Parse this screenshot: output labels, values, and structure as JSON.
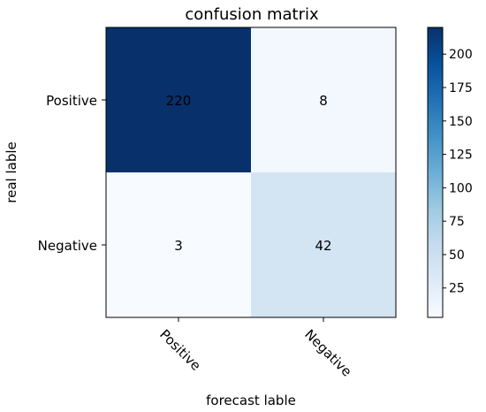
{
  "chart_data": {
    "type": "heatmap",
    "title": "confusion matrix",
    "xlabel": "forecast lable",
    "ylabel": "real lable",
    "x_categories": [
      "Positive",
      "Negative"
    ],
    "y_categories": [
      "Positive",
      "Negative"
    ],
    "values": [
      [
        220,
        8
      ],
      [
        3,
        42
      ]
    ],
    "colormap": "Blues",
    "colorbar": {
      "range": [
        3,
        220
      ],
      "ticks": [
        25,
        50,
        75,
        100,
        125,
        150,
        175,
        200
      ]
    },
    "grid": false
  }
}
